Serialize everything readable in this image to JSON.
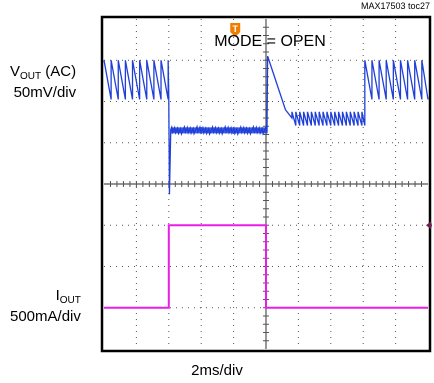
{
  "figure_id": "MAX17503 toc27",
  "chart_data": {
    "type": "line",
    "title": "MODE = OPEN",
    "trigger_marker": "T",
    "timebase": "2ms/div",
    "grid": true,
    "divisions": {
      "horizontal": 10,
      "vertical": 8
    },
    "series": [
      {
        "name_prefix": "V",
        "name_sub": "OUT",
        "name_suffix": " (AC)",
        "scale": "50mV/div",
        "color": "#1f3fd8",
        "description_points": {
          "t_div": [
            0,
            2.0,
            2.1,
            3.6,
            3.7,
            5.0,
            5.3,
            5.8,
            5.9,
            7.8,
            8.0,
            10
          ],
          "level_div_from_center": [
            3.0,
            2.1,
            1.3,
            1.3,
            1.3,
            1.3,
            3.0,
            1.6,
            1.6,
            1.6,
            3.0,
            2.6
          ]
        },
        "segments": [
          {
            "start_div": 0.0,
            "end_div": 2.0,
            "behavior": "sawtooth",
            "top_div": 3.0,
            "bottom_div": 2.0
          },
          {
            "start_div": 2.0,
            "end_div": 5.05,
            "behavior": "noisy-flat",
            "level_div": 1.3
          },
          {
            "start_div": 5.05,
            "end_div": 5.8,
            "behavior": "decay",
            "from_div": 3.1,
            "to_div": 1.6
          },
          {
            "start_div": 5.8,
            "end_div": 8.05,
            "behavior": "small-sawtooth",
            "top_div": 1.75,
            "bottom_div": 1.4
          },
          {
            "start_div": 8.05,
            "end_div": 10.0,
            "behavior": "sawtooth",
            "top_div": 3.0,
            "bottom_div": 2.0
          }
        ]
      },
      {
        "name_prefix": "I",
        "name_sub": "OUT",
        "name_suffix": "",
        "scale": "500mA/div",
        "color": "#e81ee8",
        "x_div": [
          0,
          2.0,
          2.0,
          5.0,
          5.0,
          10
        ],
        "y_div_from_center": [
          -3.0,
          -3.0,
          -1.0,
          -1.0,
          -3.0,
          -3.0
        ]
      }
    ],
    "colors": {
      "grid": "#555555",
      "frame": "#000000",
      "trigger": "#f07d00",
      "level_marker": "#6a2050"
    }
  }
}
